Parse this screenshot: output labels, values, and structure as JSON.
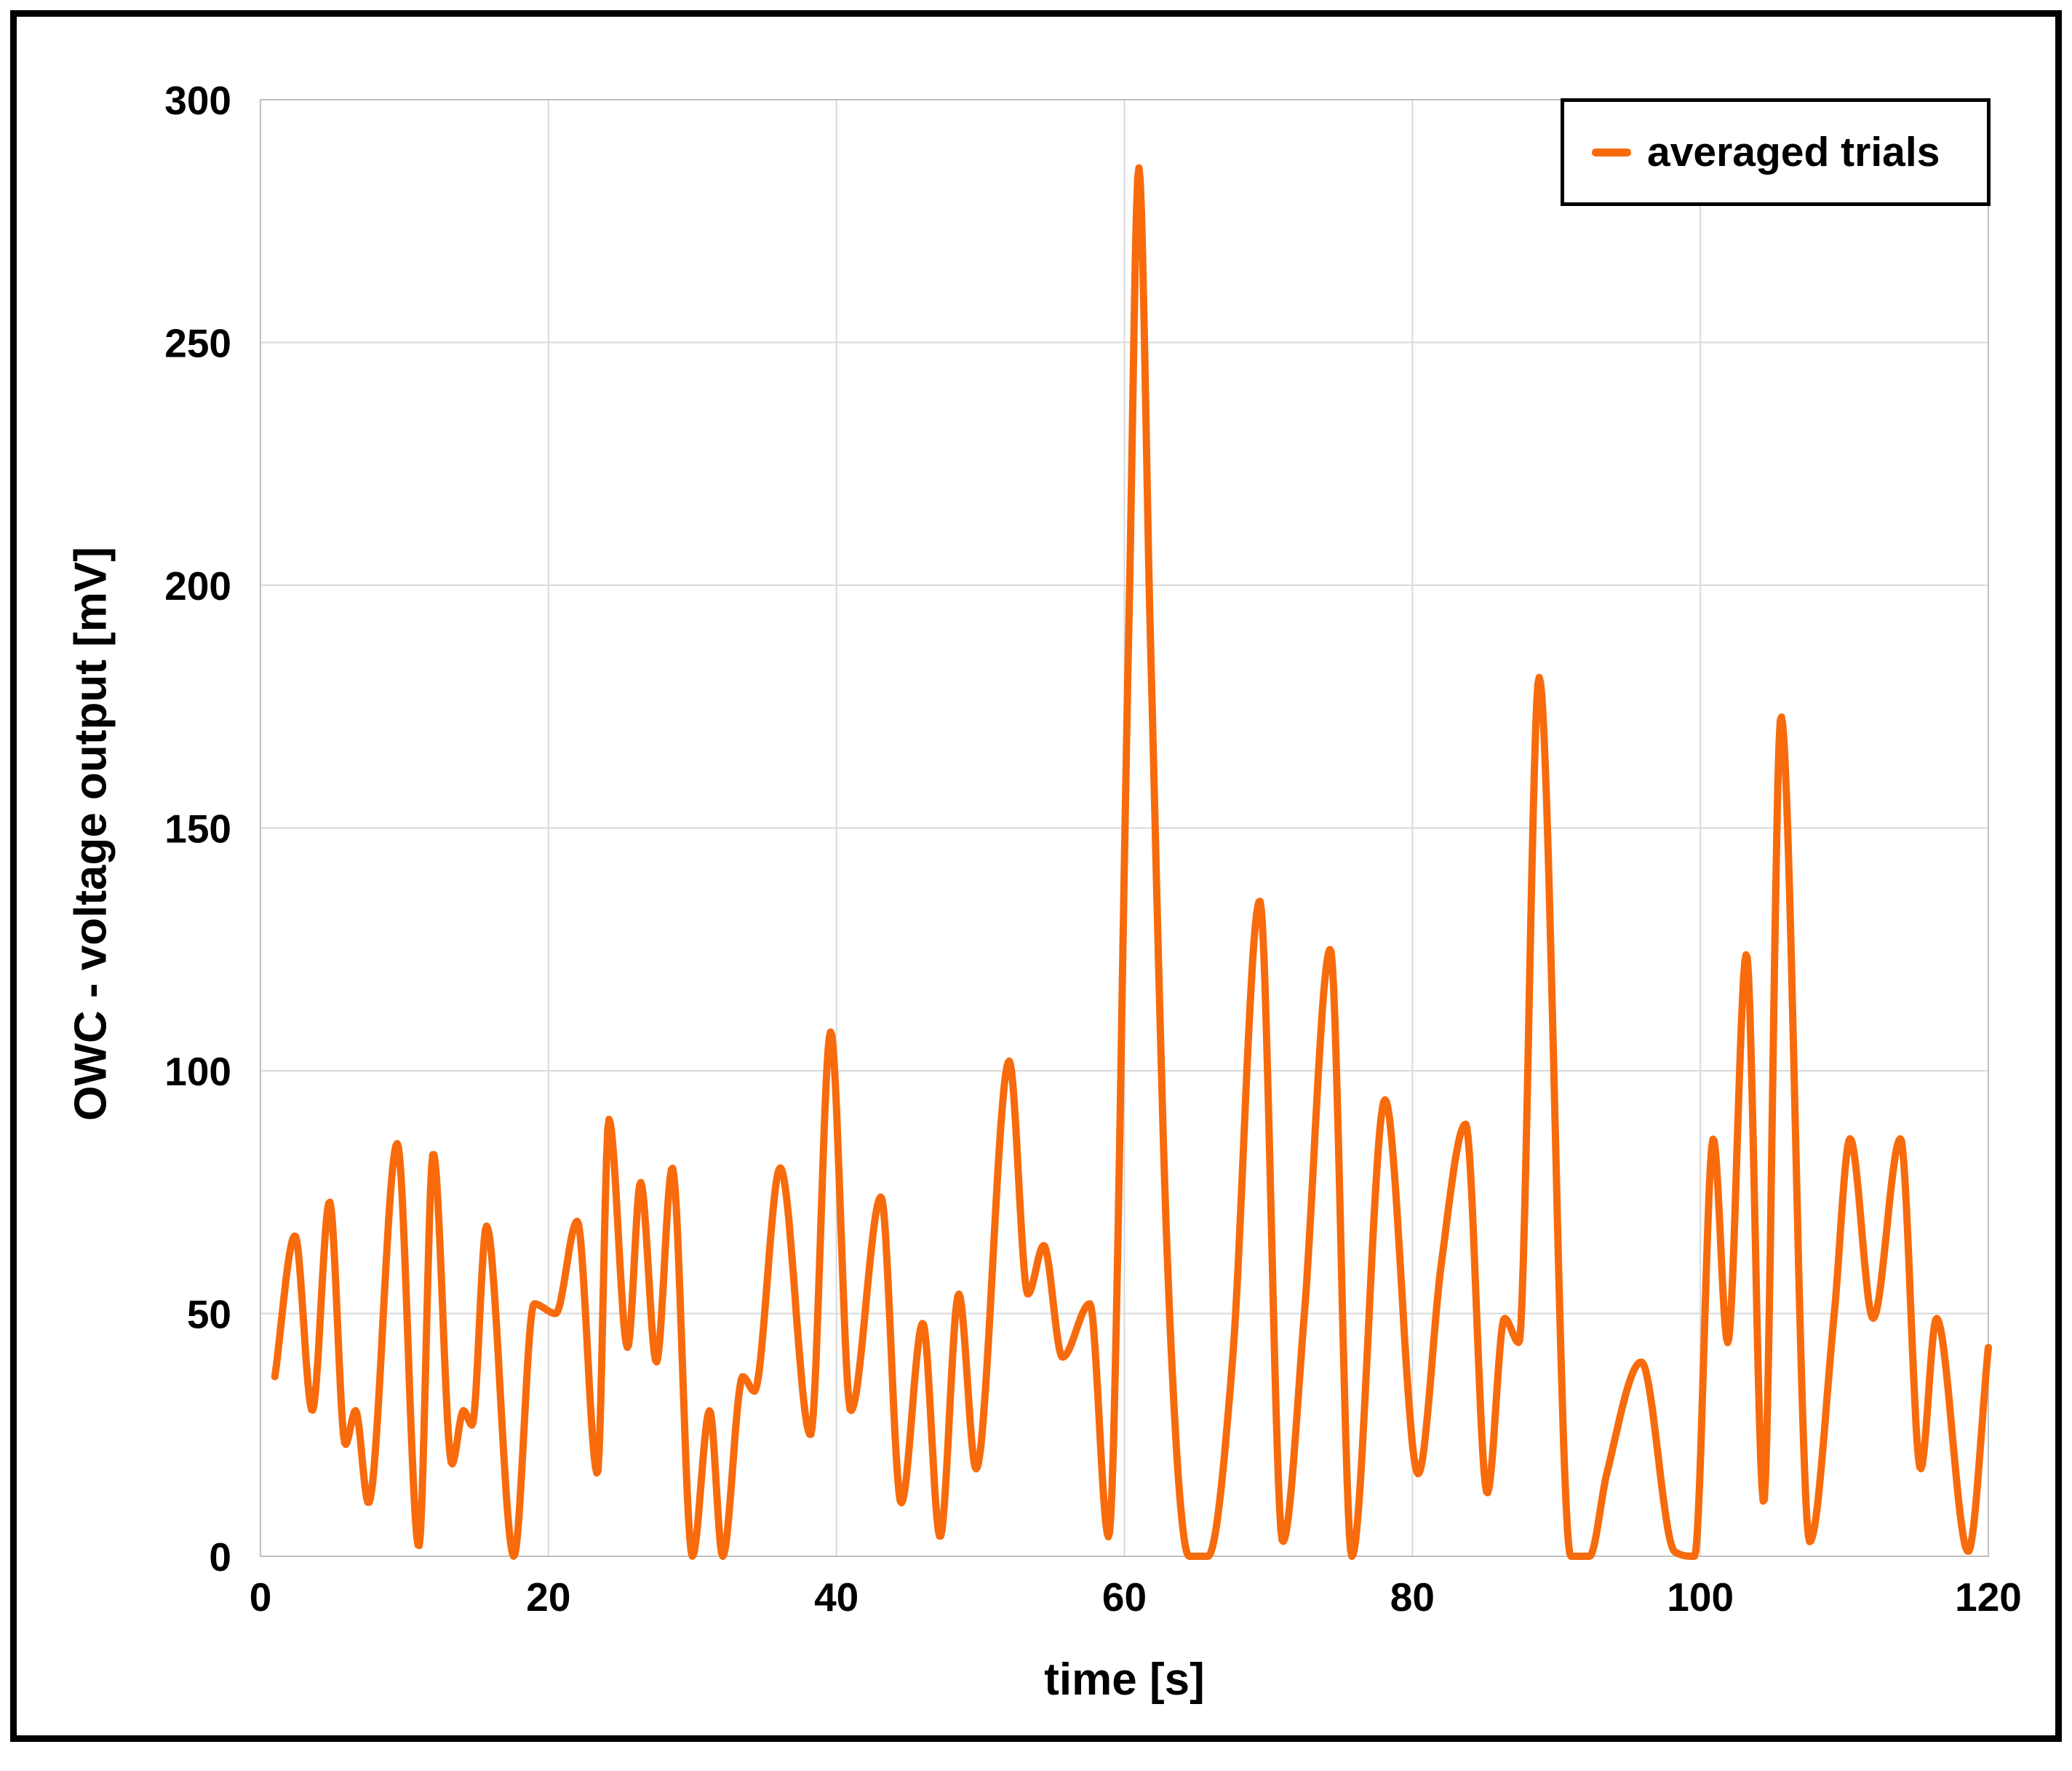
{
  "page": {
    "background": "#FFFFFF",
    "frame_border_color": "#000000"
  },
  "chart": {
    "line_color": "#F76B0C",
    "gridline_color": "#D9D9D9",
    "plot_border_color": "#C0C0C0",
    "axis_text_color": "#000000"
  },
  "legend": {
    "label": "averaged trials"
  },
  "chart_data": {
    "type": "line",
    "title": "",
    "xlabel": "time [s]",
    "ylabel": "OWC - voltage output [mV]",
    "xlim": [
      0,
      120
    ],
    "ylim": [
      0,
      300
    ],
    "x_ticks": [
      0,
      20,
      40,
      60,
      80,
      100,
      120
    ],
    "y_ticks": [
      0,
      50,
      100,
      150,
      200,
      250,
      300
    ],
    "grid": true,
    "legend_position": "top-right",
    "series": [
      {
        "name": "averaged trials",
        "color": "#F76B0C",
        "points": [
          [
            1,
            37
          ],
          [
            2.4,
            66
          ],
          [
            3.6,
            30
          ],
          [
            4.8,
            73
          ],
          [
            5.9,
            23
          ],
          [
            6.6,
            30
          ],
          [
            7.5,
            11
          ],
          [
            9.5,
            85
          ],
          [
            11,
            2
          ],
          [
            12,
            83
          ],
          [
            13.3,
            19
          ],
          [
            14.1,
            30
          ],
          [
            14.7,
            27
          ],
          [
            15.7,
            68
          ],
          [
            17.6,
            0
          ],
          [
            19,
            52
          ],
          [
            20.5,
            50
          ],
          [
            22,
            69
          ],
          [
            23.4,
            17
          ],
          [
            24.2,
            90
          ],
          [
            25.5,
            43
          ],
          [
            26.4,
            77
          ],
          [
            27.5,
            40
          ],
          [
            28.6,
            80
          ],
          [
            30,
            0
          ],
          [
            31.2,
            30
          ],
          [
            32.1,
            0
          ],
          [
            33.5,
            37
          ],
          [
            34.3,
            34
          ],
          [
            36.1,
            80
          ],
          [
            38.2,
            25
          ],
          [
            39.6,
            108
          ],
          [
            41,
            30
          ],
          [
            43.1,
            74
          ],
          [
            44.5,
            11
          ],
          [
            46,
            48
          ],
          [
            47.2,
            4
          ],
          [
            48.5,
            54
          ],
          [
            49.7,
            18
          ],
          [
            52,
            102
          ],
          [
            53.3,
            54
          ],
          [
            54.4,
            64
          ],
          [
            55.7,
            41
          ],
          [
            57.6,
            52
          ],
          [
            58.9,
            4
          ],
          [
            60.3,
            190
          ],
          [
            61,
            286
          ],
          [
            61.8,
            190
          ],
          [
            63,
            60
          ],
          [
            64.5,
            0
          ],
          [
            65.8,
            0
          ],
          [
            67.5,
            40
          ],
          [
            69.4,
            135
          ],
          [
            71,
            3
          ],
          [
            72.5,
            50
          ],
          [
            74.3,
            125
          ],
          [
            75.8,
            0
          ],
          [
            78.1,
            94
          ],
          [
            80.4,
            17
          ],
          [
            82,
            60
          ],
          [
            83.7,
            89
          ],
          [
            85.2,
            13
          ],
          [
            86.4,
            49
          ],
          [
            87.4,
            44
          ],
          [
            88.8,
            181
          ],
          [
            91,
            0
          ],
          [
            92.3,
            0
          ],
          [
            93.5,
            17
          ],
          [
            95.9,
            40
          ],
          [
            98.2,
            1
          ],
          [
            99.6,
            0
          ],
          [
            100.9,
            86
          ],
          [
            101.9,
            44
          ],
          [
            103.2,
            124
          ],
          [
            104.4,
            11
          ],
          [
            105.6,
            173
          ],
          [
            107.6,
            3
          ],
          [
            109.3,
            50
          ],
          [
            110.4,
            86
          ],
          [
            112,
            49
          ],
          [
            113.9,
            86
          ],
          [
            115.3,
            18
          ],
          [
            116.4,
            49
          ],
          [
            118.6,
            1
          ],
          [
            120,
            43
          ]
        ]
      }
    ]
  }
}
